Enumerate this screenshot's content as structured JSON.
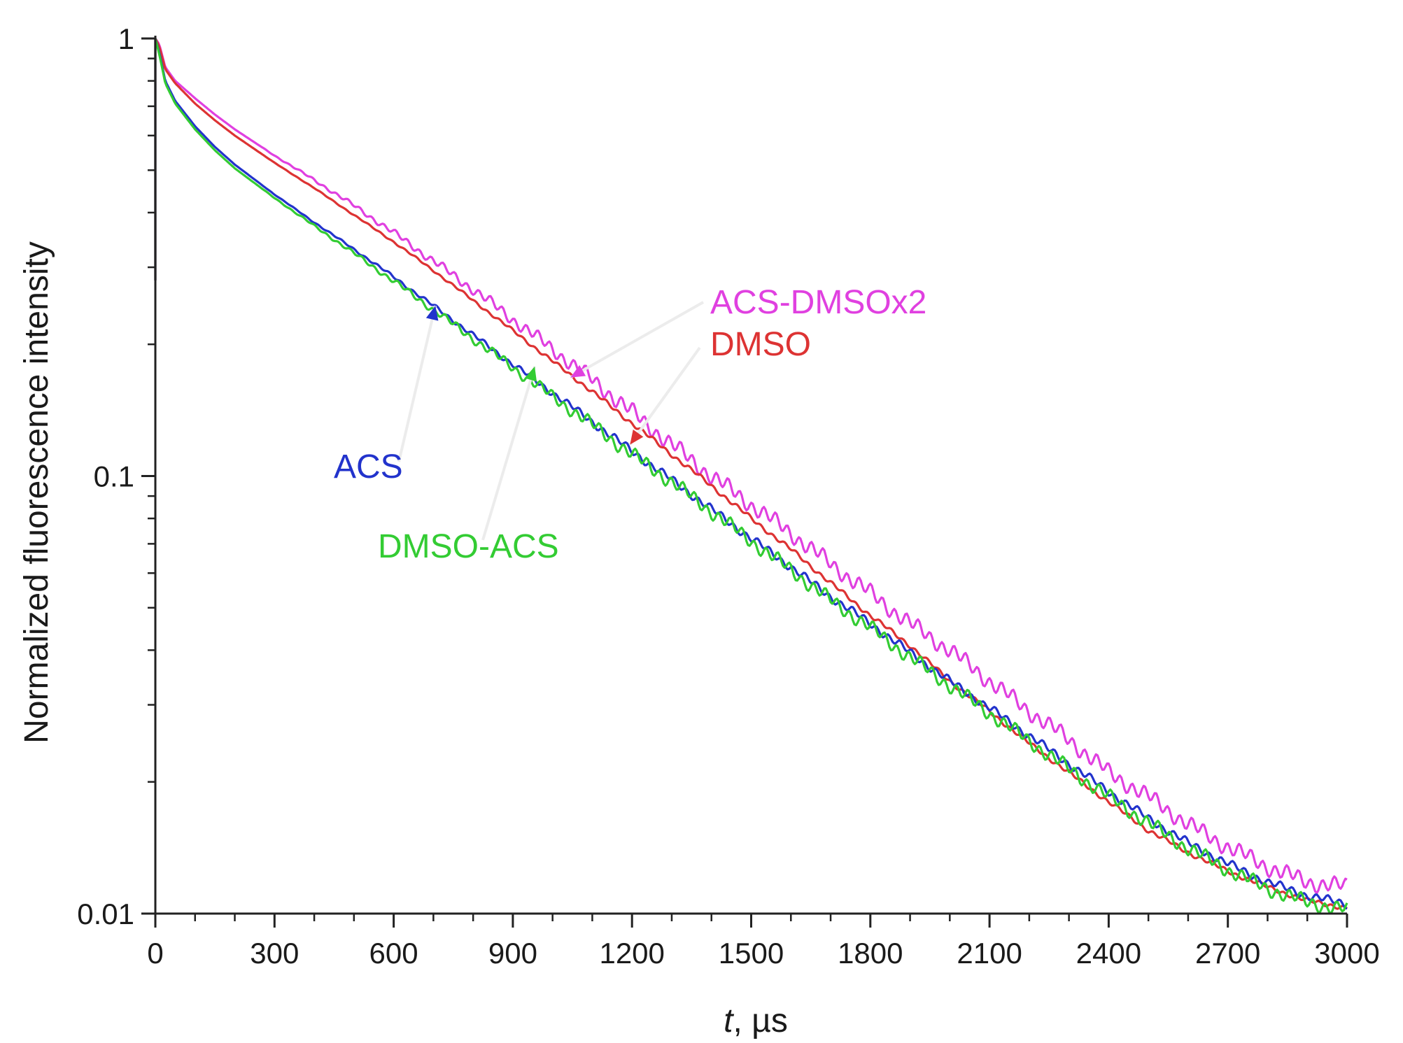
{
  "chart_data": {
    "type": "line",
    "title": "",
    "xlabel_italic": "t",
    "xlabel_rest": ", µs",
    "ylabel": "Normalized fluorescence intensity",
    "xlim": [
      0,
      3000
    ],
    "ylim": [
      0.01,
      1
    ],
    "yscale": "log",
    "grid": false,
    "legend": "inline annotations with arrows",
    "x_ticks": [
      0,
      300,
      600,
      900,
      1200,
      1500,
      1800,
      2100,
      2400,
      2700,
      3000
    ],
    "x_tick_labels": [
      "0",
      "300",
      "600",
      "900",
      "1200",
      "1500",
      "1800",
      "2100",
      "2400",
      "2700",
      "3000"
    ],
    "y_ticks": [
      0.01,
      0.1,
      1
    ],
    "y_tick_labels": [
      "0.01",
      "0.1",
      "1"
    ],
    "series": [
      {
        "name": "ACS-DMSOx2",
        "color": "#e040e0",
        "noise": 0.014,
        "points": [
          [
            0,
            1
          ],
          [
            10,
            0.97
          ],
          [
            25,
            0.86
          ],
          [
            50,
            0.8
          ],
          [
            100,
            0.73
          ],
          [
            150,
            0.67
          ],
          [
            200,
            0.62
          ],
          [
            300,
            0.54
          ],
          [
            400,
            0.475
          ],
          [
            500,
            0.415
          ],
          [
            600,
            0.36
          ],
          [
            700,
            0.31
          ],
          [
            800,
            0.267
          ],
          [
            900,
            0.228
          ],
          [
            1000,
            0.195
          ],
          [
            1100,
            0.166
          ],
          [
            1200,
            0.14
          ],
          [
            1300,
            0.118
          ],
          [
            1400,
            0.1
          ],
          [
            1500,
            0.086
          ],
          [
            1600,
            0.074
          ],
          [
            1700,
            0.063
          ],
          [
            1800,
            0.054
          ],
          [
            1900,
            0.046
          ],
          [
            2000,
            0.04
          ],
          [
            2100,
            0.034
          ],
          [
            2200,
            0.029
          ],
          [
            2300,
            0.025
          ],
          [
            2400,
            0.021
          ],
          [
            2500,
            0.0185
          ],
          [
            2600,
            0.016
          ],
          [
            2700,
            0.0142
          ],
          [
            2800,
            0.0128
          ],
          [
            2900,
            0.0118
          ],
          [
            3000,
            0.0115
          ]
        ]
      },
      {
        "name": "DMSO",
        "color": "#dd3333",
        "noise": 0.004,
        "points": [
          [
            0,
            1
          ],
          [
            10,
            0.96
          ],
          [
            25,
            0.85
          ],
          [
            50,
            0.79
          ],
          [
            100,
            0.71
          ],
          [
            150,
            0.65
          ],
          [
            200,
            0.6
          ],
          [
            300,
            0.52
          ],
          [
            400,
            0.455
          ],
          [
            500,
            0.395
          ],
          [
            600,
            0.343
          ],
          [
            700,
            0.295
          ],
          [
            800,
            0.252
          ],
          [
            900,
            0.215
          ],
          [
            1000,
            0.183
          ],
          [
            1100,
            0.156
          ],
          [
            1200,
            0.132
          ],
          [
            1300,
            0.112
          ],
          [
            1400,
            0.095
          ],
          [
            1500,
            0.08
          ],
          [
            1600,
            0.068
          ],
          [
            1700,
            0.057
          ],
          [
            1800,
            0.048
          ],
          [
            1900,
            0.041
          ],
          [
            2000,
            0.034
          ],
          [
            2100,
            0.029
          ],
          [
            2200,
            0.0245
          ],
          [
            2300,
            0.021
          ],
          [
            2400,
            0.018
          ],
          [
            2500,
            0.0155
          ],
          [
            2600,
            0.0138
          ],
          [
            2700,
            0.0125
          ],
          [
            2800,
            0.0115
          ],
          [
            2900,
            0.0107
          ],
          [
            3000,
            0.0103
          ]
        ]
      },
      {
        "name": "ACS",
        "color": "#2233cc",
        "noise": 0.007,
        "points": [
          [
            0,
            1
          ],
          [
            10,
            0.93
          ],
          [
            25,
            0.8
          ],
          [
            50,
            0.72
          ],
          [
            100,
            0.63
          ],
          [
            150,
            0.565
          ],
          [
            200,
            0.515
          ],
          [
            300,
            0.44
          ],
          [
            400,
            0.38
          ],
          [
            500,
            0.33
          ],
          [
            600,
            0.285
          ],
          [
            700,
            0.245
          ],
          [
            800,
            0.21
          ],
          [
            900,
            0.18
          ],
          [
            1000,
            0.155
          ],
          [
            1100,
            0.133
          ],
          [
            1200,
            0.114
          ],
          [
            1300,
            0.098
          ],
          [
            1400,
            0.084
          ],
          [
            1500,
            0.072
          ],
          [
            1600,
            0.062
          ],
          [
            1700,
            0.053
          ],
          [
            1800,
            0.046
          ],
          [
            1900,
            0.0395
          ],
          [
            2000,
            0.034
          ],
          [
            2100,
            0.0295
          ],
          [
            2200,
            0.0255
          ],
          [
            2300,
            0.022
          ],
          [
            2400,
            0.019
          ],
          [
            2500,
            0.0165
          ],
          [
            2600,
            0.0145
          ],
          [
            2700,
            0.013
          ],
          [
            2800,
            0.0118
          ],
          [
            2900,
            0.011
          ],
          [
            3000,
            0.0105
          ]
        ]
      },
      {
        "name": "DMSO-ACS",
        "color": "#33cc33",
        "noise": 0.012,
        "points": [
          [
            0,
            1
          ],
          [
            10,
            0.92
          ],
          [
            25,
            0.79
          ],
          [
            50,
            0.71
          ],
          [
            100,
            0.62
          ],
          [
            150,
            0.555
          ],
          [
            200,
            0.505
          ],
          [
            300,
            0.432
          ],
          [
            400,
            0.373
          ],
          [
            500,
            0.323
          ],
          [
            600,
            0.279
          ],
          [
            700,
            0.24
          ],
          [
            800,
            0.206
          ],
          [
            900,
            0.177
          ],
          [
            1000,
            0.152
          ],
          [
            1100,
            0.131
          ],
          [
            1200,
            0.112
          ],
          [
            1300,
            0.097
          ],
          [
            1400,
            0.083
          ],
          [
            1500,
            0.071
          ],
          [
            1600,
            0.061
          ],
          [
            1700,
            0.052
          ],
          [
            1800,
            0.045
          ],
          [
            1900,
            0.0385
          ],
          [
            2000,
            0.0332
          ],
          [
            2100,
            0.0287
          ],
          [
            2200,
            0.0248
          ],
          [
            2300,
            0.0214
          ],
          [
            2400,
            0.0185
          ],
          [
            2500,
            0.0161
          ],
          [
            2600,
            0.0141
          ],
          [
            2700,
            0.0126
          ],
          [
            2800,
            0.0114
          ],
          [
            2900,
            0.0106
          ],
          [
            3000,
            0.0102
          ]
        ]
      }
    ],
    "annotations": [
      {
        "text": "ACS-DMSOx2",
        "color": "#e040e0",
        "arrow_to": [
          1045,
          0.168
        ]
      },
      {
        "text": "DMSO",
        "color": "#dd3333",
        "arrow_to": [
          1195,
          0.118
        ]
      },
      {
        "text": "ACS",
        "color": "#2233cc",
        "arrow_to": [
          705,
          0.245
        ]
      },
      {
        "text": "DMSO-ACS",
        "color": "#33cc33",
        "arrow_to": [
          955,
          0.178
        ]
      }
    ]
  }
}
